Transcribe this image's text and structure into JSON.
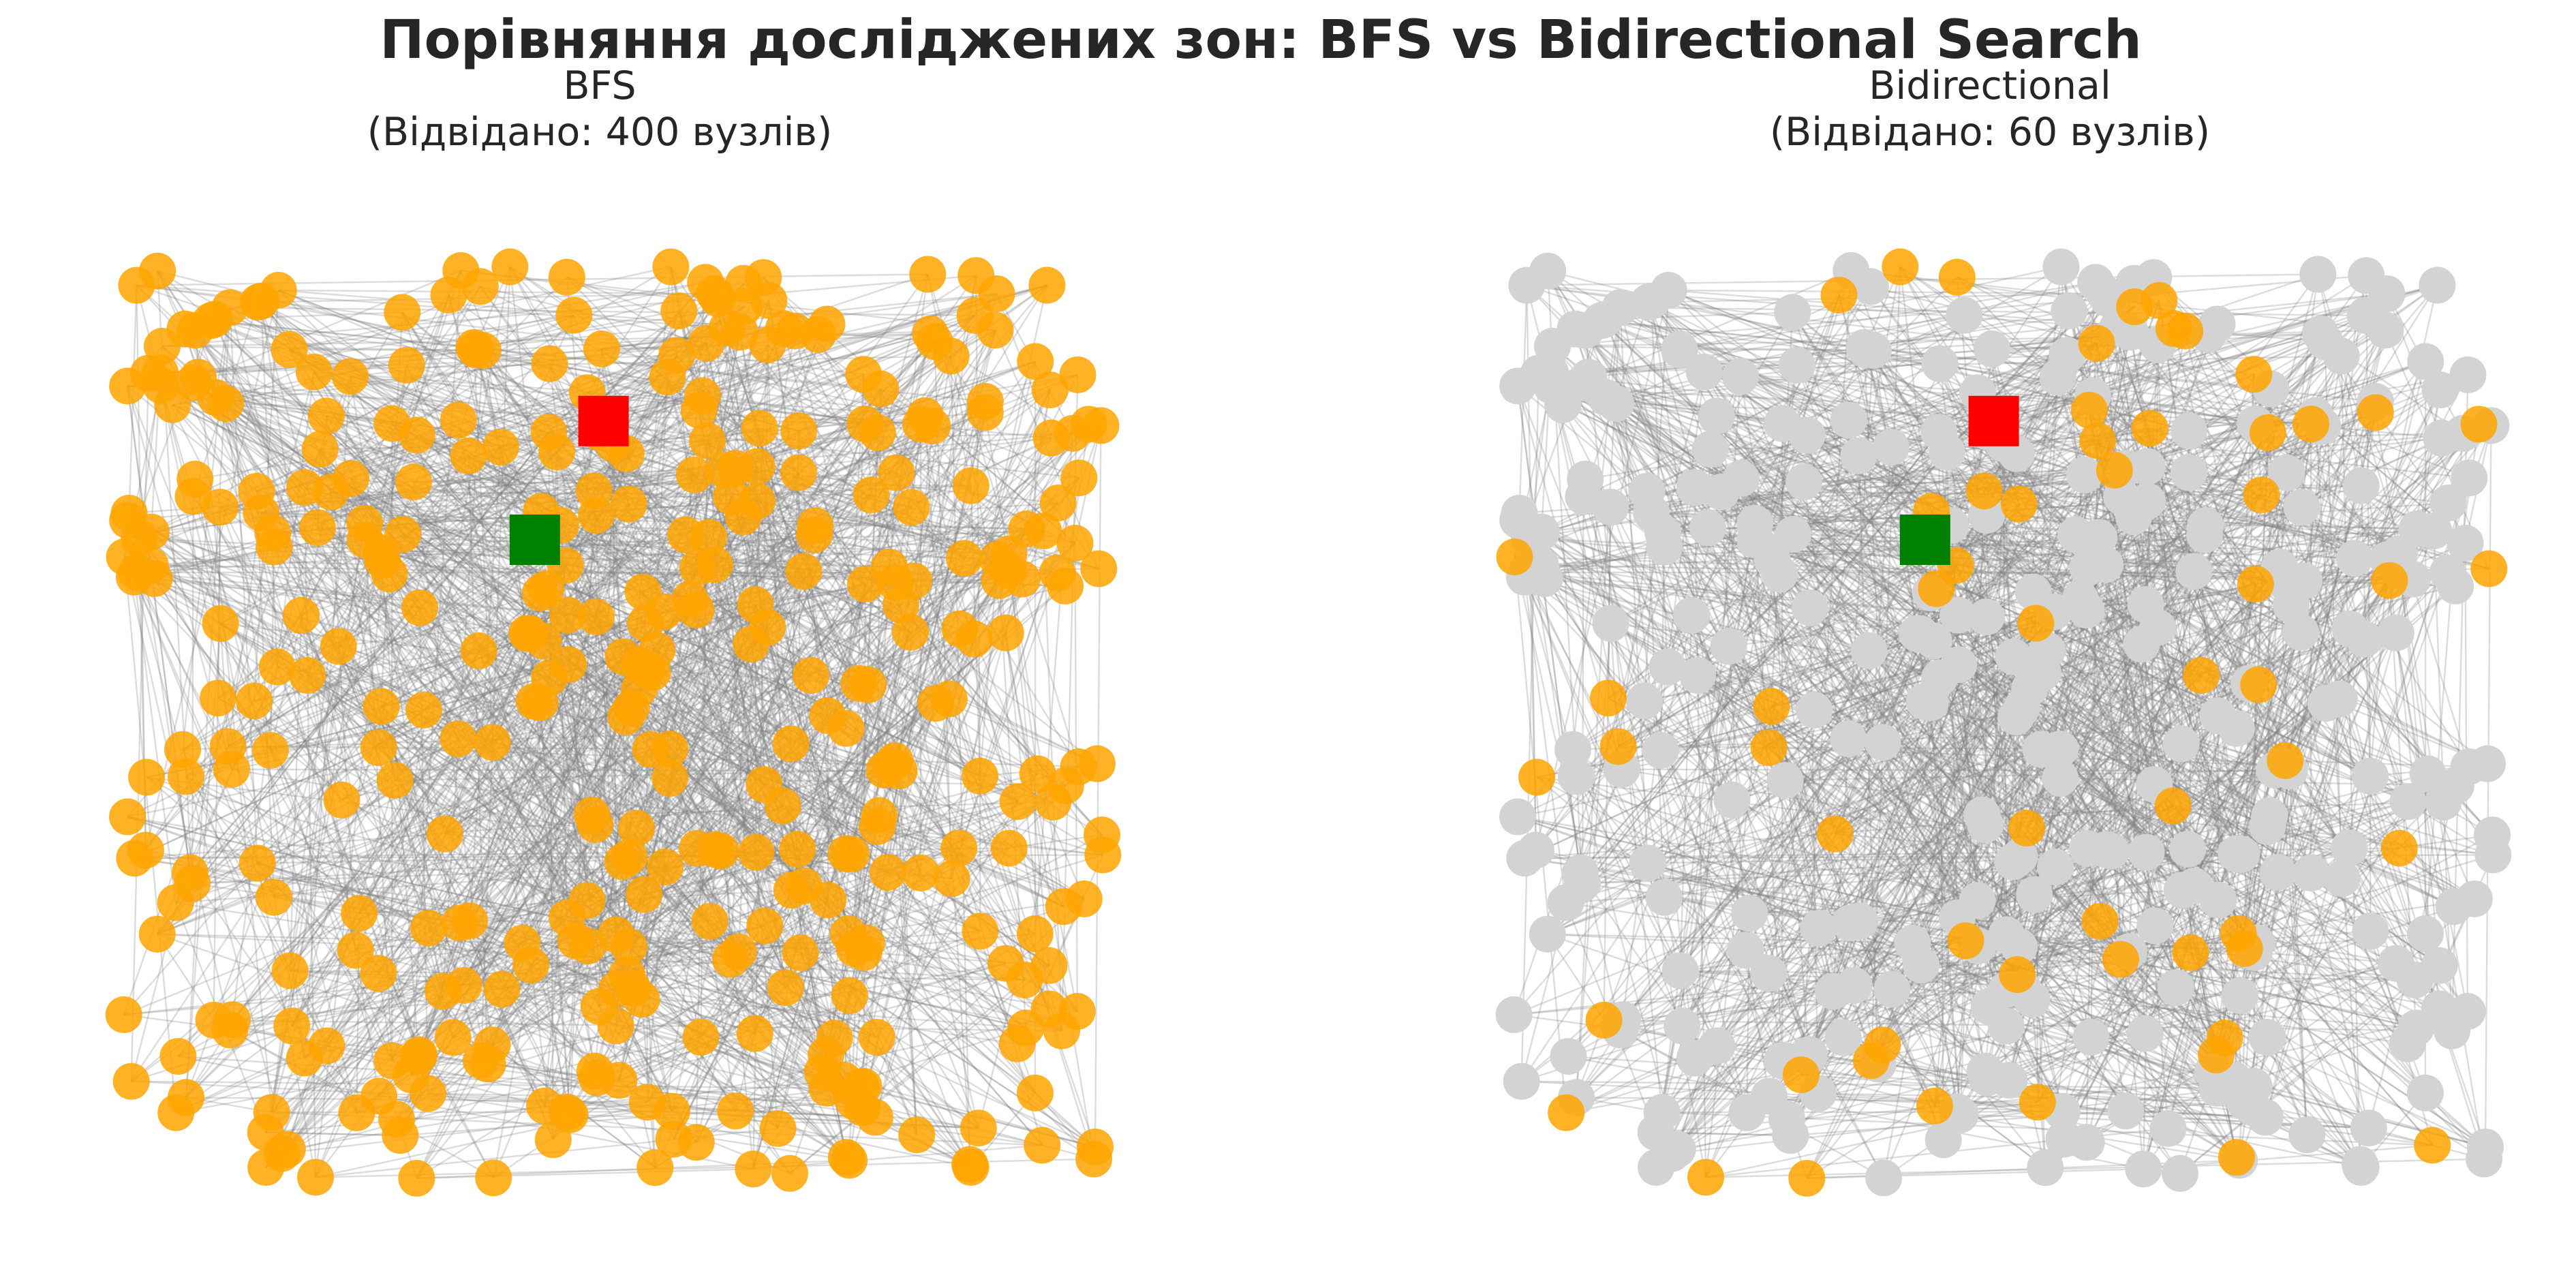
{
  "figure": {
    "title": "Порівняння досліджених зон: BFS vs Bidirectional Search"
  },
  "colors": {
    "visited": "#FFA500",
    "unvisited": "#D3D3D3",
    "edge": "#808080",
    "start": "#008000",
    "goal": "#FF0000"
  },
  "chart_data": [
    {
      "type": "scatter",
      "title": "BFS",
      "subtitle": "(Відвідано: 400 вузлів)",
      "visited_count": 400,
      "total_nodes": 400,
      "xlim": [
        0,
        100
      ],
      "ylim": [
        0,
        100
      ],
      "axis": "off",
      "grid": false,
      "start_node": {
        "x": 42,
        "y": 70,
        "color": "green"
      },
      "goal_node": {
        "x": 49,
        "y": 83,
        "color": "red"
      }
    },
    {
      "type": "scatter",
      "title": "Bidirectional",
      "subtitle": "(Відвідано: 60 вузлів)",
      "visited_count": 60,
      "total_nodes": 400,
      "xlim": [
        0,
        100
      ],
      "ylim": [
        0,
        100
      ],
      "axis": "off",
      "grid": false,
      "start_node": {
        "x": 42,
        "y": 70,
        "color": "green"
      },
      "goal_node": {
        "x": 49,
        "y": 83,
        "color": "red"
      }
    }
  ]
}
